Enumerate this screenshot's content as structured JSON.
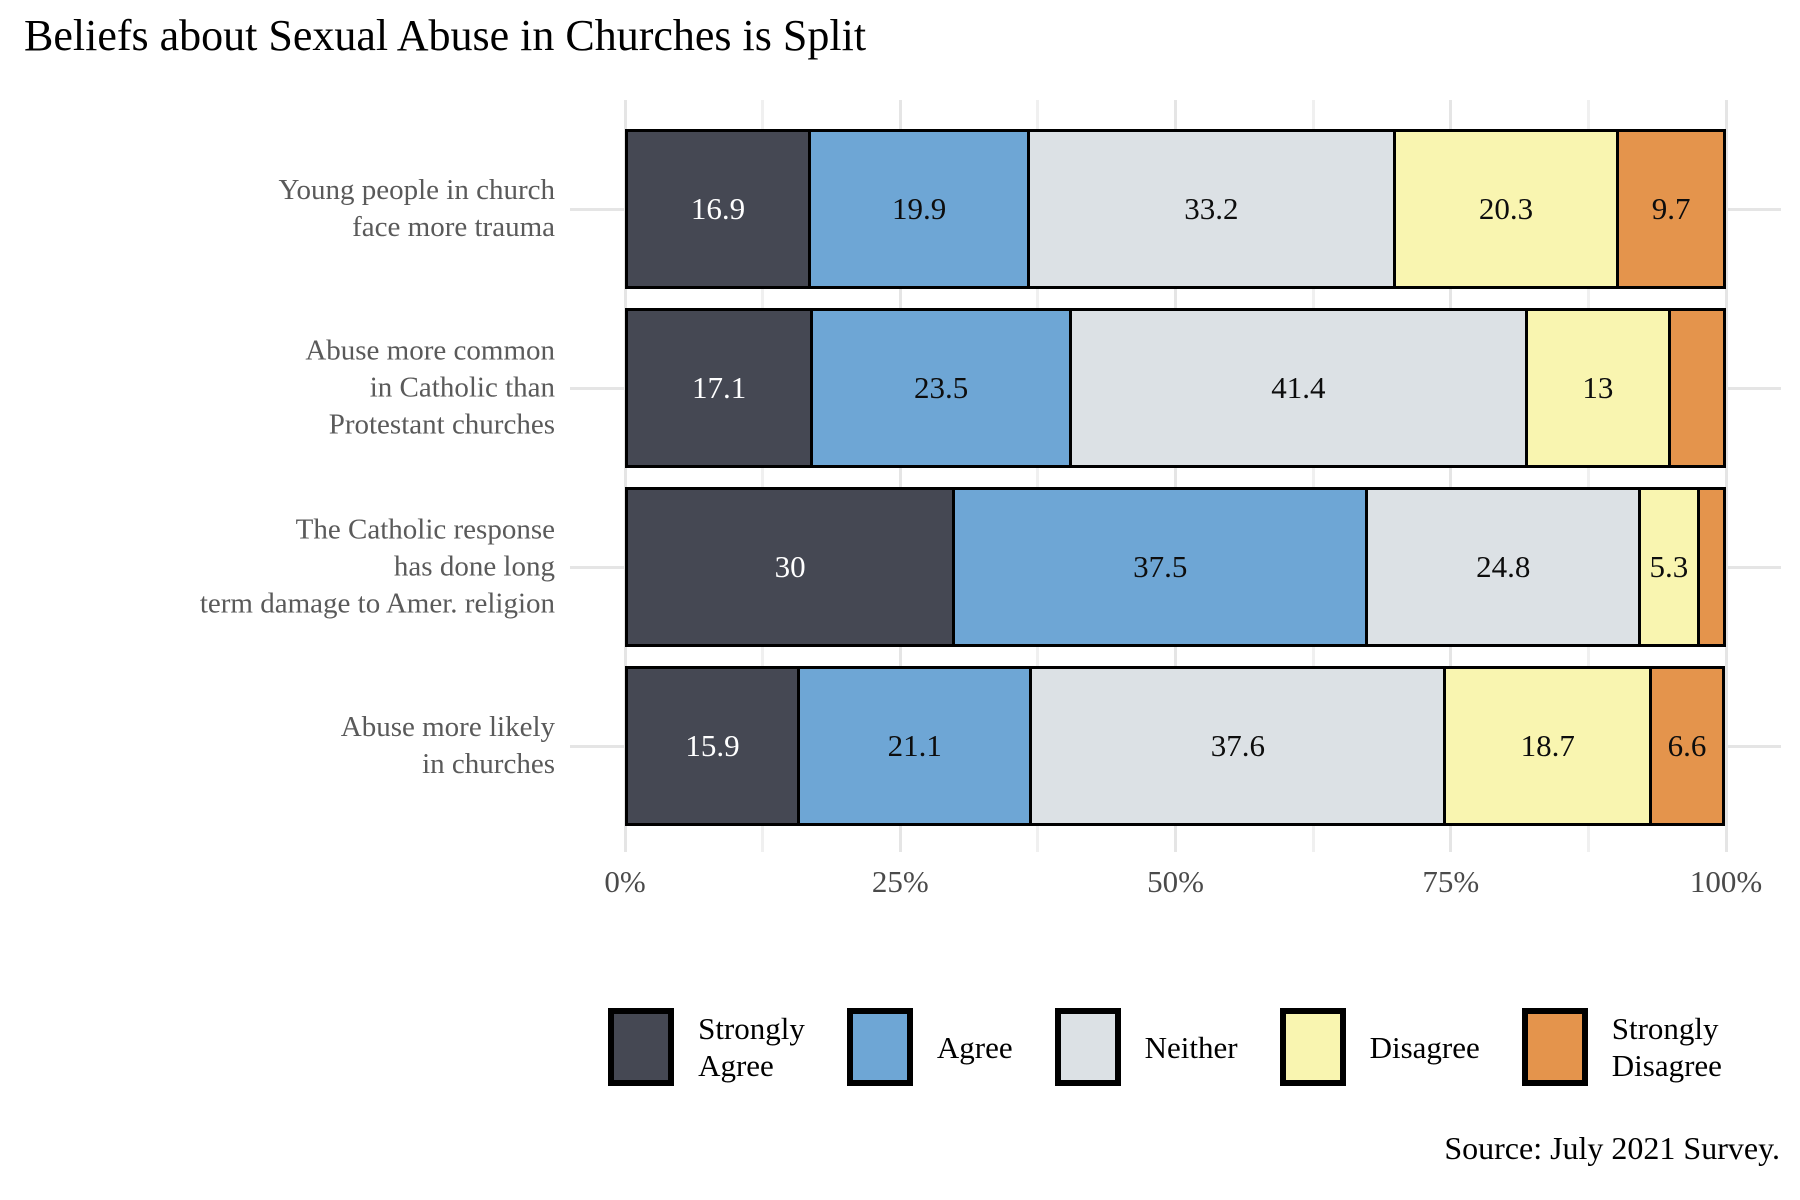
{
  "title": "Beliefs about Sexual Abuse in Churches is Split",
  "source": "Source: July 2021 Survey.",
  "x_axis": {
    "tick_labels": [
      "0%",
      "25%",
      "50%",
      "75%",
      "100%"
    ],
    "tick_values": [
      0,
      25,
      50,
      75,
      100
    ],
    "minor_tick_values": [
      12.5,
      37.5,
      62.5,
      87.5
    ],
    "max": 100
  },
  "legend": {
    "items": [
      {
        "label": "Strongly\nAgree",
        "color": "#454853"
      },
      {
        "label": "Agree",
        "color": "#6EA6D5"
      },
      {
        "label": "Neither",
        "color": "#DCE1E5"
      },
      {
        "label": "Disagree",
        "color": "#F9F5B0"
      },
      {
        "label": "Strongly\nDisagree",
        "color": "#E4944C"
      }
    ]
  },
  "chart_data": {
    "type": "bar",
    "stacked": true,
    "orientation": "horizontal",
    "title": "Beliefs about Sexual Abuse in Churches is Split",
    "xlabel": "",
    "ylabel": "",
    "xlim": [
      0,
      100
    ],
    "grid": true,
    "legend_position": "bottom",
    "categories": [
      "Young people in church face more trauma",
      "Abuse more common in Catholic than Protestant churches",
      "The Catholic response has done long term damage to Amer. religion",
      "Abuse more likely in churches"
    ],
    "category_label_lines": [
      [
        "Young people in church",
        "face more trauma"
      ],
      [
        "Abuse more common",
        "in Catholic than",
        "Protestant churches"
      ],
      [
        "The Catholic response",
        "has done long",
        "term damage to Amer. religion"
      ],
      [
        "Abuse more likely",
        "in churches"
      ]
    ],
    "series": [
      {
        "name": "Strongly Agree",
        "color": "#454853",
        "text_color": "#ffffff",
        "values": [
          16.9,
          17.1,
          30,
          15.9
        ],
        "value_labels": [
          "16.9",
          "17.1",
          "30",
          "15.9"
        ]
      },
      {
        "name": "Agree",
        "color": "#6EA6D5",
        "text_color": "#0d0d0d",
        "values": [
          19.9,
          23.5,
          37.5,
          21.1
        ],
        "value_labels": [
          "19.9",
          "23.5",
          "37.5",
          "21.1"
        ]
      },
      {
        "name": "Neither",
        "color": "#DCE1E5",
        "text_color": "#0d0d0d",
        "values": [
          33.2,
          41.4,
          24.8,
          37.6
        ],
        "value_labels": [
          "33.2",
          "41.4",
          "24.8",
          "37.6"
        ]
      },
      {
        "name": "Disagree",
        "color": "#F9F5B0",
        "text_color": "#0d0d0d",
        "values": [
          20.3,
          13,
          5.3,
          18.7
        ],
        "value_labels": [
          "20.3",
          "13",
          "5.3",
          "18.7"
        ]
      },
      {
        "name": "Strongly Disagree",
        "color": "#E4944C",
        "text_color": "#0d0d0d",
        "values": [
          9.7,
          5.0,
          2.4,
          6.6
        ],
        "value_labels": [
          "9.7",
          "",
          "",
          "6.6"
        ]
      }
    ]
  },
  "colors": {
    "grid_major": "#e5e5e5",
    "grid_minor": "#f0f0f0",
    "bar_border": "#000000",
    "category_label": "#5a5a5a",
    "tick_label": "#4a4a4a",
    "title": "#000000",
    "background": "#ffffff"
  }
}
